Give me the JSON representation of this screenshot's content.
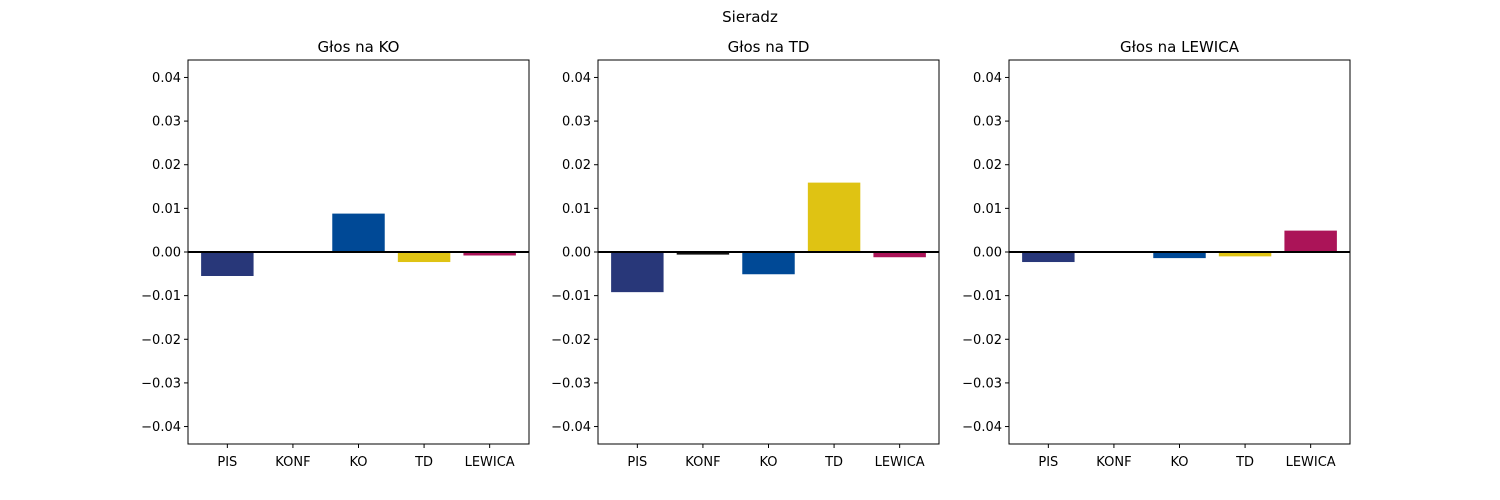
{
  "figure": {
    "suptitle": "Sieradz"
  },
  "chart_data": [
    {
      "type": "bar",
      "title": "Głos na KO",
      "xlabel": "",
      "ylabel": "",
      "categories": [
        "PIS",
        "KONF",
        "KO",
        "TD",
        "LEWICA"
      ],
      "values": [
        -0.0055,
        0.0,
        0.0088,
        -0.0023,
        -0.0008
      ],
      "ylim": [
        -0.044,
        0.044
      ],
      "yticks": [
        -0.04,
        -0.03,
        -0.02,
        -0.01,
        0.0,
        0.01,
        0.02,
        0.03,
        0.04
      ],
      "ytick_labels": [
        "−0.04",
        "−0.03",
        "−0.02",
        "−0.01",
        "0.00",
        "0.01",
        "0.02",
        "0.03",
        "0.04"
      ],
      "grid": false,
      "bar_colors": [
        "#283779",
        "#111111",
        "#004996",
        "#dfc313",
        "#ab1458"
      ]
    },
    {
      "type": "bar",
      "title": "Głos na TD",
      "xlabel": "",
      "ylabel": "",
      "categories": [
        "PIS",
        "KONF",
        "KO",
        "TD",
        "LEWICA"
      ],
      "values": [
        -0.0092,
        -0.0006,
        -0.0051,
        0.0159,
        -0.0012
      ],
      "ylim": [
        -0.044,
        0.044
      ],
      "yticks": [
        -0.04,
        -0.03,
        -0.02,
        -0.01,
        0.0,
        0.01,
        0.02,
        0.03,
        0.04
      ],
      "ytick_labels": [
        "−0.04",
        "−0.03",
        "−0.02",
        "−0.01",
        "0.00",
        "0.01",
        "0.02",
        "0.03",
        "0.04"
      ],
      "grid": false,
      "bar_colors": [
        "#283779",
        "#111111",
        "#004996",
        "#dfc313",
        "#ab1458"
      ]
    },
    {
      "type": "bar",
      "title": "Głos na LEWICA",
      "xlabel": "",
      "ylabel": "",
      "categories": [
        "PIS",
        "KONF",
        "KO",
        "TD",
        "LEWICA"
      ],
      "values": [
        -0.0023,
        0.0,
        -0.0014,
        -0.001,
        0.0049
      ],
      "ylim": [
        -0.044,
        0.044
      ],
      "yticks": [
        -0.04,
        -0.03,
        -0.02,
        -0.01,
        0.0,
        0.01,
        0.02,
        0.03,
        0.04
      ],
      "ytick_labels": [
        "−0.04",
        "−0.03",
        "−0.02",
        "−0.01",
        "0.00",
        "0.01",
        "0.02",
        "0.03",
        "0.04"
      ],
      "grid": false,
      "bar_colors": [
        "#283779",
        "#111111",
        "#004996",
        "#dfc313",
        "#ab1458"
      ]
    }
  ]
}
